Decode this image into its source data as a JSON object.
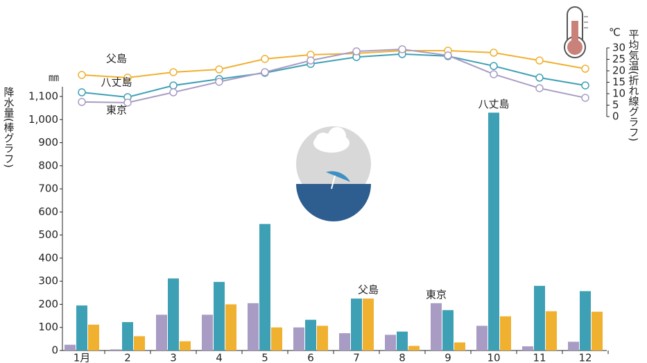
{
  "chart_data": {
    "type": "bar",
    "y_label": "降水量(棒グラフ)",
    "y_unit": "㎜",
    "y2_label": "平均気温(折れ線グラフ)",
    "y2_unit": "℃",
    "categories": [
      "1月",
      "2",
      "3",
      "4",
      "5",
      "6",
      "7",
      "8",
      "9",
      "10",
      "11",
      "12"
    ],
    "ylim": [
      0,
      1100
    ],
    "yticks": [
      0,
      100,
      200,
      300,
      400,
      500,
      600,
      700,
      800,
      900,
      {
        "value": 1000,
        "label": "1,000"
      },
      {
        "value": 1100,
        "label": "1,100"
      }
    ],
    "y2lim": [
      0,
      30
    ],
    "y2ticks": [
      0,
      5,
      10,
      15,
      20,
      25,
      30
    ],
    "series": [
      {
        "name": "東京",
        "type": "bar",
        "color": "#a89cc4",
        "values": [
          25,
          5,
          155,
          155,
          205,
          100,
          75,
          68,
          205,
          107,
          18,
          38
        ]
      },
      {
        "name": "八丈島",
        "type": "bar",
        "color": "#3ea0b4",
        "values": [
          195,
          123,
          312,
          297,
          548,
          133,
          225,
          82,
          175,
          1030,
          280,
          257
        ]
      },
      {
        "name": "父島",
        "type": "bar",
        "color": "#f0b030",
        "values": [
          112,
          62,
          40,
          200,
          100,
          107,
          225,
          20,
          35,
          148,
          170,
          168
        ]
      },
      {
        "name": "父島",
        "type": "line",
        "axis": "y2",
        "color": "#f0b030",
        "values": [
          18.2,
          17,
          19.4,
          20.6,
          25.2,
          27,
          27.6,
          28.8,
          28.8,
          27.9,
          24.5,
          20.9
        ]
      },
      {
        "name": "八丈島",
        "type": "line",
        "axis": "y2",
        "color": "#3ea0b4",
        "values": [
          10.6,
          8.5,
          13.6,
          16.4,
          19.1,
          23,
          26,
          27.3,
          26.4,
          22.1,
          17,
          13.6
        ]
      },
      {
        "name": "東京",
        "type": "line",
        "axis": "y2",
        "color": "#a89cc4",
        "values": [
          6.4,
          6.1,
          10.6,
          15.2,
          19.4,
          24.5,
          28.5,
          29.4,
          26.7,
          18.5,
          12.4,
          8.2
        ]
      }
    ]
  }
}
